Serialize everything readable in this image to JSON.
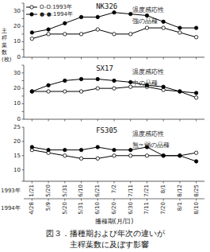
{
  "chart_data": [
    {
      "type": "line",
      "title": "NK326",
      "annotations": [
        "温度感応性",
        "強の品種"
      ],
      "ylabel": [
        "主",
        "稈",
        "葉",
        "数",
        "(枚)"
      ],
      "legend": "upper left",
      "categories": [
        null,
        null,
        null,
        null,
        null,
        null,
        null,
        null,
        null,
        null,
        null
      ],
      "ylim": [
        0,
        35
      ],
      "yticks": [
        0,
        {
          "value": 5,
          "label": ""
        },
        10,
        {
          "value": 15,
          "label": ""
        },
        20,
        {
          "value": 25,
          "label": ""
        },
        30,
        {
          "value": 35,
          "label": ""
        }
      ],
      "series": [
        {
          "name": "O-O:1993年",
          "color": "#000000",
          "marker": "open-circle",
          "values": [
            12,
            15,
            15,
            15,
            18,
            15,
            15,
            19,
            19,
            16,
            13
          ]
        },
        {
          "name": "●-●:1994年",
          "color": "#000000",
          "marker": "circle",
          "values": [
            16,
            18,
            22,
            26,
            26,
            29,
            28,
            27,
            23,
            19,
            19
          ]
        }
      ]
    },
    {
      "type": "line",
      "title": "SX17",
      "annotations": [
        "温度感応性",
        "中の品種"
      ],
      "categories": [
        null,
        null,
        null,
        null,
        null,
        null,
        null,
        null,
        null,
        null,
        null
      ],
      "ylim": [
        0,
        35
      ],
      "yticks": [
        0,
        {
          "value": 5,
          "label": ""
        },
        10,
        {
          "value": 15,
          "label": ""
        },
        20,
        {
          "value": 25,
          "label": ""
        },
        30,
        {
          "value": 35,
          "label": ""
        }
      ],
      "series": [
        {
          "color": "#000000",
          "marker": "open-circle",
          "values": [
            18,
            18,
            18,
            18,
            20,
            20,
            21,
            21,
            19,
            18,
            14
          ]
        },
        {
          "color": "#000000",
          "marker": "circle",
          "values": [
            18,
            22,
            25,
            26,
            26,
            25,
            24,
            22,
            21,
            18,
            17
          ]
        }
      ]
    },
    {
      "type": "line",
      "title": "FS305",
      "annotations": [
        "温度感応性",
        "無~弱の品種"
      ],
      "xlabel": "播種期(月/日)",
      "category_titles": [
        "1993年",
        "1994年"
      ],
      "categories": [
        "1/21",
        "5/20",
        "5/31",
        "6/10",
        "6/21",
        "7/2",
        "7/11",
        "7/21",
        "8/1",
        "8/12",
        "8/25"
      ],
      "categories2": [
        "4/28",
        "5/9",
        "5/20",
        "5/31",
        "6/10",
        "6/20",
        "6/30",
        "7/11",
        "7/20",
        "8/1",
        "8/10"
      ],
      "ylim": [
        6,
        25
      ],
      "yticks": [
        {
          "value": 6,
          "label": ""
        },
        10,
        15,
        20,
        25
      ],
      "series": [
        {
          "color": "#000000",
          "marker": "open-circle",
          "values": [
            17,
            16,
            15,
            14,
            14,
            15,
            15,
            15,
            15,
            15,
            16
          ]
        },
        {
          "color": "#000000",
          "marker": "circle",
          "values": [
            18,
            17,
            17,
            17,
            18,
            17,
            17,
            18,
            15,
            15,
            13
          ]
        }
      ]
    }
  ],
  "caption": [
    "図３．播種期および年次の違いが",
    "　主稈葉数に及ぼす影響"
  ]
}
